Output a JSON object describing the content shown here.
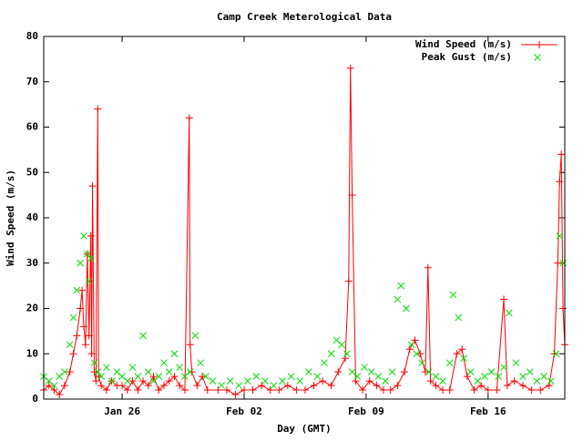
{
  "chart_data": {
    "type": "line",
    "title": "Camp Creek Meterological Data",
    "x_label": "Day (GMT)",
    "y_label": "Wind Speed (m/s)",
    "xlim": [
      -4.5,
      25.4
    ],
    "xticks": [
      {
        "value": 0,
        "label": "Jan 26"
      },
      {
        "value": 7,
        "label": "Feb 02"
      },
      {
        "value": 14,
        "label": "Feb 09"
      },
      {
        "value": 21,
        "label": "Feb 16"
      }
    ],
    "ylim": [
      0,
      80
    ],
    "yticks": [
      0,
      10,
      20,
      30,
      40,
      50,
      60,
      70,
      80
    ],
    "legend": "top-right",
    "series": [
      {
        "name": "Wind Speed (m/s)",
        "color": "#ff0000",
        "style": "linespoints",
        "x": [
          -4.5,
          -4.2,
          -3.9,
          -3.6,
          -3.3,
          -3.0,
          -2.8,
          -2.6,
          -2.4,
          -2.3,
          -2.2,
          -2.1,
          -2.0,
          -1.9,
          -1.8,
          -1.75,
          -1.7,
          -1.6,
          -1.5,
          -1.4,
          -1.35,
          -1.2,
          -0.9,
          -0.6,
          -0.3,
          0,
          0.3,
          0.6,
          0.9,
          1.2,
          1.5,
          1.8,
          2.1,
          2.4,
          2.7,
          3.0,
          3.3,
          3.6,
          3.85,
          3.9,
          4.0,
          4.3,
          4.6,
          4.9,
          5.5,
          6,
          6.5,
          7,
          7.5,
          8,
          8.5,
          9,
          9.5,
          10,
          10.5,
          11,
          11.5,
          12,
          12.4,
          12.8,
          13.0,
          13.1,
          13.2,
          13.4,
          13.8,
          14.2,
          14.6,
          15.0,
          15.4,
          15.8,
          16.2,
          16.5,
          16.8,
          17.1,
          17.4,
          17.55,
          17.7,
          18.0,
          18.4,
          18.8,
          19.2,
          19.5,
          19.8,
          20.2,
          20.6,
          21.0,
          21.5,
          21.9,
          22.1,
          22.5,
          23,
          23.5,
          24,
          24.5,
          24.8,
          25.0,
          25.1,
          25.2,
          25.3,
          25.4
        ],
        "values": [
          2,
          3,
          2,
          1,
          3,
          6,
          10,
          14,
          20,
          24,
          16,
          12,
          32,
          14,
          36,
          10,
          47,
          6,
          4,
          64,
          5,
          3,
          2,
          4,
          3,
          3,
          2,
          4,
          2,
          4,
          3,
          5,
          2,
          3,
          4,
          5,
          3,
          2,
          62,
          12,
          6,
          3,
          5,
          2,
          2,
          2,
          1,
          2,
          2,
          3,
          2,
          2,
          3,
          2,
          2,
          3,
          4,
          3,
          6,
          9,
          26,
          73,
          45,
          4,
          2,
          4,
          3,
          2,
          2,
          3,
          6,
          11,
          13,
          10,
          6,
          29,
          4,
          3,
          2,
          2,
          10,
          11,
          5,
          2,
          3,
          2,
          2,
          22,
          3,
          4,
          3,
          2,
          2,
          3,
          10,
          30,
          48,
          54,
          20,
          12
        ]
      },
      {
        "name": "Peak Gust (m/s)",
        "color": "#00dd00",
        "style": "points",
        "x": [
          -4.5,
          -4.2,
          -3.9,
          -3.6,
          -3.3,
          -3.0,
          -2.8,
          -2.6,
          -2.4,
          -2.2,
          -2.0,
          -1.9,
          -1.8,
          -1.6,
          -1.4,
          -1.2,
          -0.9,
          -0.6,
          -0.3,
          0,
          0.3,
          0.6,
          0.9,
          1.2,
          1.5,
          1.8,
          2.1,
          2.4,
          2.7,
          3.0,
          3.3,
          3.6,
          3.9,
          4.2,
          4.5,
          4.8,
          5.2,
          5.7,
          6.2,
          6.7,
          7.2,
          7.7,
          8.2,
          8.7,
          9.2,
          9.7,
          10.2,
          10.7,
          11.2,
          11.6,
          12.0,
          12.3,
          12.6,
          12.9,
          13.2,
          13.5,
          13.9,
          14.3,
          14.7,
          15.1,
          15.5,
          15.8,
          16.0,
          16.3,
          16.6,
          16.9,
          17.2,
          17.6,
          18.0,
          18.4,
          18.8,
          19.0,
          19.3,
          19.6,
          20.0,
          20.4,
          20.8,
          21.2,
          21.6,
          21.9,
          22.2,
          22.6,
          23.0,
          23.4,
          23.8,
          24.2,
          24.6,
          24.9,
          25.1,
          25.3
        ],
        "values": [
          5,
          4,
          3,
          5,
          6,
          12,
          18,
          24,
          30,
          36,
          32,
          26,
          31,
          8,
          6,
          5,
          7,
          4,
          6,
          5,
          4,
          7,
          5,
          14,
          6,
          4,
          5,
          8,
          6,
          10,
          7,
          5,
          6,
          14,
          8,
          5,
          4,
          3,
          4,
          3,
          4,
          5,
          4,
          3,
          4,
          5,
          4,
          6,
          5,
          8,
          10,
          13,
          12,
          10,
          6,
          5,
          7,
          6,
          5,
          4,
          6,
          22,
          25,
          20,
          12,
          10,
          8,
          6,
          5,
          4,
          8,
          23,
          18,
          9,
          6,
          4,
          5,
          6,
          5,
          7,
          19,
          8,
          5,
          6,
          4,
          5,
          4,
          10,
          36,
          30
        ]
      }
    ]
  }
}
